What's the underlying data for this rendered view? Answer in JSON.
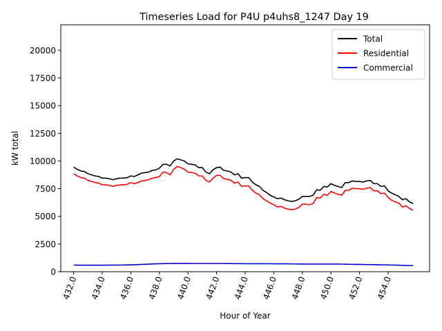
{
  "chart_data": {
    "type": "line",
    "title": "Timeseries Load for P4U p4uhs8_1247  Day 19",
    "xlabel": "Hour of Year",
    "ylabel": "kW total",
    "xlim": [
      431.1,
      456.9
    ],
    "ylim": [
      0,
      22300
    ],
    "xticks": [
      432,
      434,
      436,
      438,
      440,
      442,
      444,
      446,
      448,
      450,
      452,
      454
    ],
    "xtick_labels": [
      "432.0",
      "434.0",
      "436.0",
      "438.0",
      "440.0",
      "442.0",
      "444.0",
      "446.0",
      "448.0",
      "450.0",
      "452.0",
      "454.0"
    ],
    "yticks": [
      0,
      2500,
      5000,
      7500,
      10000,
      12500,
      15000,
      17500,
      20000
    ],
    "ytick_labels": [
      "0",
      "2500",
      "5000",
      "7500",
      "10000",
      "12500",
      "15000",
      "17500",
      "20000"
    ],
    "legend_location": "top-right",
    "x": {
      "start": 432,
      "step": 0.25,
      "count": 96
    },
    "series": [
      {
        "name": "Total",
        "color": "#000000",
        "values": [
          9450,
          9250,
          9100,
          9050,
          8850,
          8750,
          8650,
          8600,
          8450,
          8450,
          8400,
          8300,
          8400,
          8450,
          8450,
          8500,
          8650,
          8600,
          8750,
          8900,
          8950,
          9000,
          9150,
          9200,
          9350,
          9700,
          9700,
          9550,
          10000,
          10200,
          10100,
          10000,
          9750,
          9700,
          9650,
          9400,
          9400,
          9000,
          8850,
          9200,
          9400,
          9450,
          9150,
          9100,
          9000,
          8750,
          8850,
          8450,
          8500,
          8500,
          8100,
          7850,
          7700,
          7350,
          7150,
          6900,
          6750,
          6600,
          6650,
          6500,
          6400,
          6350,
          6400,
          6550,
          6800,
          6800,
          6800,
          6900,
          7400,
          7350,
          7700,
          7650,
          7950,
          7800,
          7700,
          7600,
          8050,
          8050,
          8200,
          8150,
          8150,
          8100,
          8200,
          8250,
          7950,
          7950,
          7700,
          7750,
          7300,
          7100,
          6950,
          6800,
          6500,
          6600,
          6300,
          6150
        ]
      },
      {
        "name": "Residential",
        "color": "#ff0000",
        "values": [
          8850,
          8650,
          8500,
          8450,
          8250,
          8150,
          8050,
          8000,
          7850,
          7850,
          7800,
          7700,
          7800,
          7850,
          7850,
          7900,
          8050,
          7950,
          8050,
          8200,
          8250,
          8300,
          8450,
          8500,
          8600,
          9000,
          8950,
          8750,
          9250,
          9500,
          9400,
          9250,
          9000,
          8950,
          8900,
          8650,
          8650,
          8250,
          8100,
          8450,
          8700,
          8700,
          8400,
          8350,
          8250,
          8000,
          8100,
          7700,
          7750,
          7750,
          7350,
          7100,
          6950,
          6600,
          6400,
          6200,
          6050,
          5850,
          5900,
          5750,
          5650,
          5600,
          5650,
          5800,
          6100,
          6100,
          6050,
          6150,
          6700,
          6650,
          7000,
          6900,
          7250,
          7100,
          7000,
          6900,
          7350,
          7350,
          7550,
          7500,
          7500,
          7450,
          7550,
          7600,
          7300,
          7300,
          7050,
          7100,
          6700,
          6450,
          6300,
          6200,
          5850,
          5950,
          5700,
          5550
        ]
      },
      {
        "name": "Commercial",
        "color": "#0000cc",
        "values": [
          600,
          595,
          590,
          590,
          590,
          590,
          590,
          590,
          590,
          590,
          595,
          595,
          595,
          600,
          605,
          610,
          620,
          630,
          640,
          655,
          665,
          680,
          695,
          710,
          720,
          730,
          735,
          740,
          745,
          745,
          745,
          745,
          745,
          740,
          740,
          740,
          740,
          740,
          740,
          740,
          740,
          740,
          740,
          735,
          735,
          730,
          730,
          725,
          720,
          720,
          720,
          720,
          720,
          720,
          720,
          720,
          715,
          715,
          715,
          710,
          710,
          700,
          700,
          695,
          690,
          690,
          690,
          690,
          690,
          690,
          690,
          690,
          690,
          690,
          690,
          685,
          675,
          670,
          665,
          660,
          655,
          650,
          645,
          640,
          635,
          630,
          620,
          615,
          610,
          600,
          595,
          585,
          575,
          565,
          560,
          555
        ]
      }
    ]
  }
}
